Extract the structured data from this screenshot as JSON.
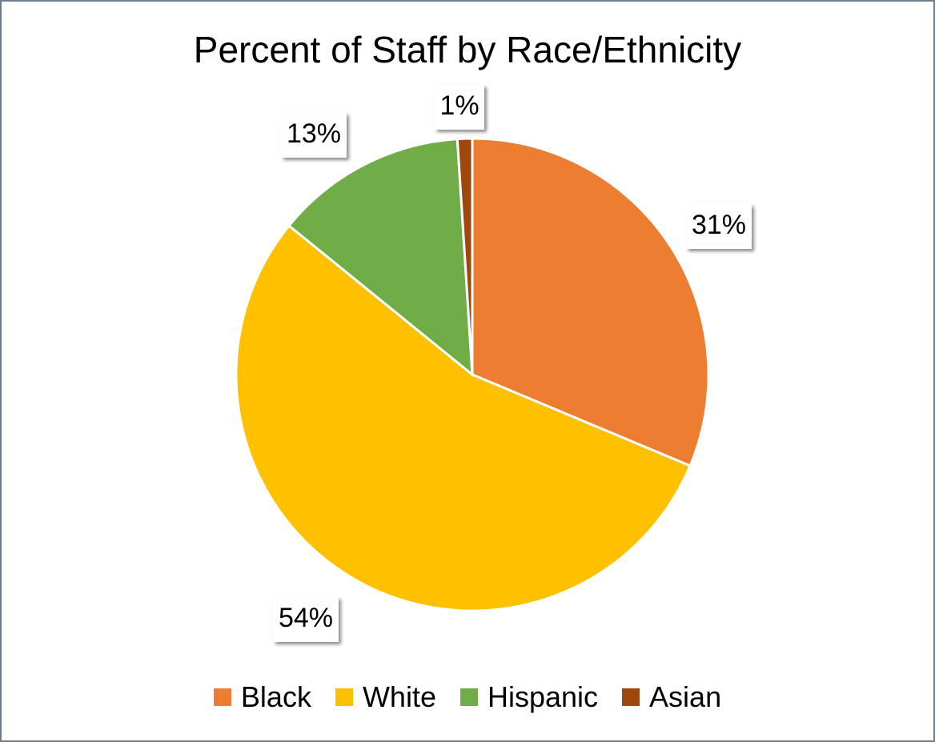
{
  "chart_data": {
    "type": "pie",
    "title": "Percent of Staff by Race/Ethnicity",
    "categories": [
      "Black",
      "White",
      "Hispanic",
      "Asian"
    ],
    "values": [
      31,
      54,
      13,
      1
    ],
    "labels": [
      "31%",
      "54%",
      "13%",
      "1%"
    ],
    "colors": [
      "#ED7D31",
      "#FFC000",
      "#70AD47",
      "#9E480E"
    ],
    "legend": "bottom",
    "start_angle_deg": 0,
    "direction": "clockwise"
  }
}
